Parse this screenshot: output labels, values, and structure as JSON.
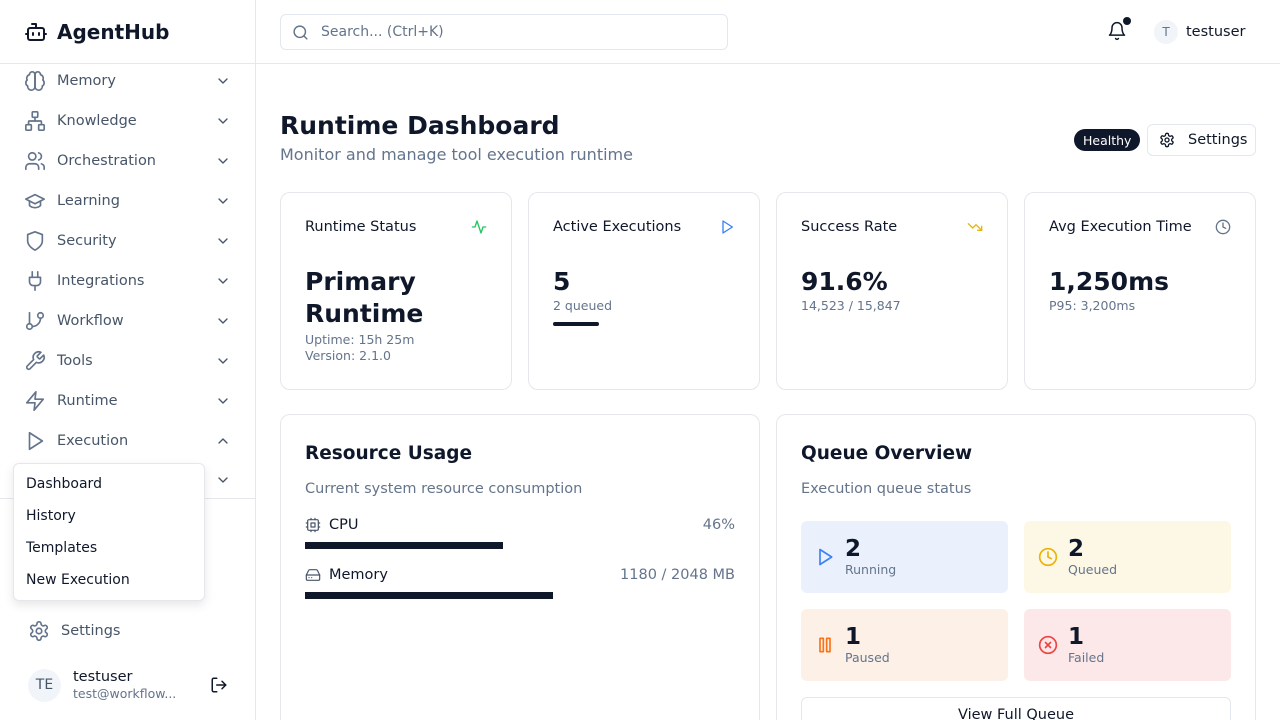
{
  "app": {
    "name": "AgentHub"
  },
  "sidebar": {
    "items": [
      {
        "label": "Memory",
        "icon": "brain-icon"
      },
      {
        "label": "Knowledge",
        "icon": "network-icon"
      },
      {
        "label": "Orchestration",
        "icon": "users-icon"
      },
      {
        "label": "Learning",
        "icon": "graduation-cap-icon"
      },
      {
        "label": "Security",
        "icon": "shield-icon"
      },
      {
        "label": "Integrations",
        "icon": "plug-icon"
      },
      {
        "label": "Workflow",
        "icon": "git-branch-icon"
      },
      {
        "label": "Tools",
        "icon": "wrench-icon"
      },
      {
        "label": "Runtime",
        "icon": "zap-icon"
      },
      {
        "label": "Execution",
        "icon": "play-icon",
        "expanded": true
      }
    ],
    "execution_menu": [
      "Dashboard",
      "History",
      "Templates",
      "New Execution"
    ],
    "settings_label": "Settings",
    "user": {
      "initials": "TE",
      "name": "testuser",
      "email": "test@workflow..."
    }
  },
  "header": {
    "search_placeholder": "Search... (Ctrl+K)",
    "user": {
      "initial": "T",
      "name": "testuser"
    },
    "has_notifications": true
  },
  "page": {
    "title": "Runtime Dashboard",
    "subtitle": "Monitor and manage tool execution runtime",
    "status_badge": "Healthy",
    "settings_label": "Settings"
  },
  "stats": [
    {
      "title": "Runtime Status",
      "value": "Primary Runtime",
      "lines": [
        "Uptime: 15h 25m",
        "Version: 2.1.0"
      ],
      "icon": "activity-icon",
      "color": "#22c55e"
    },
    {
      "title": "Active Executions",
      "value": "5",
      "lines": [
        "2 queued"
      ],
      "icon": "play-icon",
      "color": "#3b82f6"
    },
    {
      "title": "Success Rate",
      "value": "91.6%",
      "lines": [
        "14,523 / 15,847"
      ],
      "icon": "trending-down-icon",
      "color": "#eab308"
    },
    {
      "title": "Avg Execution Time",
      "value": "1,250ms",
      "lines": [
        "P95: 3,200ms"
      ],
      "icon": "clock-icon",
      "color": "#64748b"
    }
  ],
  "resources": {
    "title": "Resource Usage",
    "description": "Current system resource consumption",
    "items": [
      {
        "name": "CPU",
        "value": "46%",
        "fraction": 0.46,
        "icon": "cpu-icon"
      },
      {
        "name": "Memory",
        "value": "1180 / 2048 MB",
        "fraction": 0.576,
        "icon": "hard-drive-icon"
      }
    ]
  },
  "queue": {
    "title": "Queue Overview",
    "description": "Execution queue status",
    "items": [
      {
        "count": "2",
        "label": "Running",
        "icon": "play-icon",
        "bg": "#eaf1fd",
        "color": "#3b82f6"
      },
      {
        "count": "2",
        "label": "Queued",
        "icon": "clock-icon",
        "bg": "#fdf8e6",
        "color": "#eab308"
      },
      {
        "count": "1",
        "label": "Paused",
        "icon": "pause-icon",
        "bg": "#fdf0e6",
        "color": "#f97316"
      },
      {
        "count": "1",
        "label": "Failed",
        "icon": "x-circle-icon",
        "bg": "#fce8e8",
        "color": "#ef4444"
      }
    ],
    "view_button": "View Full Queue"
  }
}
